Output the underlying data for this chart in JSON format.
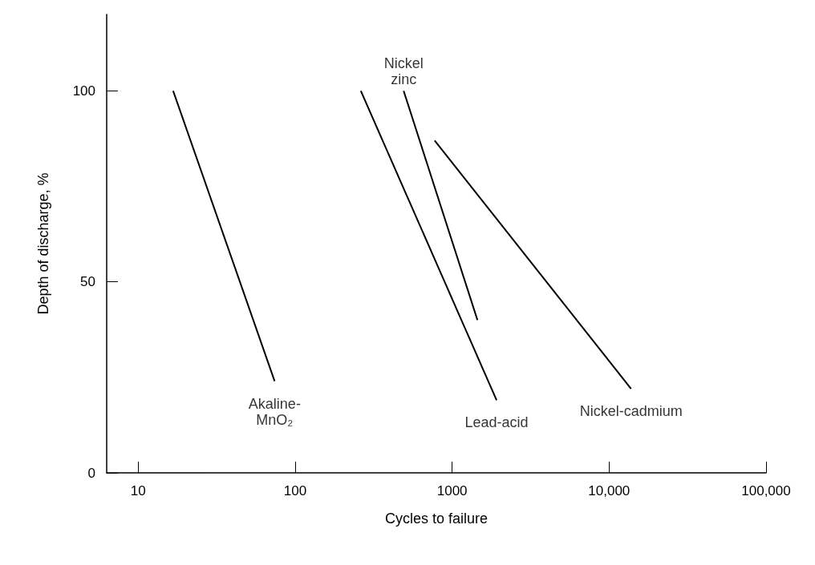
{
  "chart_data": {
    "type": "line",
    "xlabel": "Cycles to failure",
    "ylabel": "Depth of discharge, %",
    "log": "x",
    "xlim": [
      6.3,
      100000
    ],
    "xticks": [
      10,
      100,
      1000,
      {
        "value": 10000,
        "label": "10,000"
      },
      {
        "value": 100000,
        "label": "100,000"
      }
    ],
    "ylim": [
      0,
      120
    ],
    "yticks": [
      0,
      50,
      100
    ],
    "grid": false,
    "marker": "none",
    "line_style": "solid",
    "series": [
      {
        "color": "#000000",
        "x": [
          16.7,
          74
        ],
        "values": [
          100,
          24
        ]
      },
      {
        "color": "#000000",
        "x": [
          262,
          1920
        ],
        "values": [
          100,
          19
        ]
      },
      {
        "color": "#000000",
        "x": [
          491,
          1450
        ],
        "values": [
          100,
          40
        ]
      },
      {
        "color": "#000000",
        "x": [
          774,
          13800
        ],
        "values": [
          87,
          22
        ]
      }
    ],
    "annotations": [
      {
        "text": "Akaline-\nMnO₂",
        "x": 74,
        "y": 24
      },
      {
        "text": "Nickel\nzinc",
        "x": 491,
        "y": 100
      },
      {
        "text": "Lead-acid",
        "x": 1920,
        "y": 19
      },
      {
        "text": "Nickel-cadmium",
        "x": 13800,
        "y": 22
      }
    ]
  }
}
